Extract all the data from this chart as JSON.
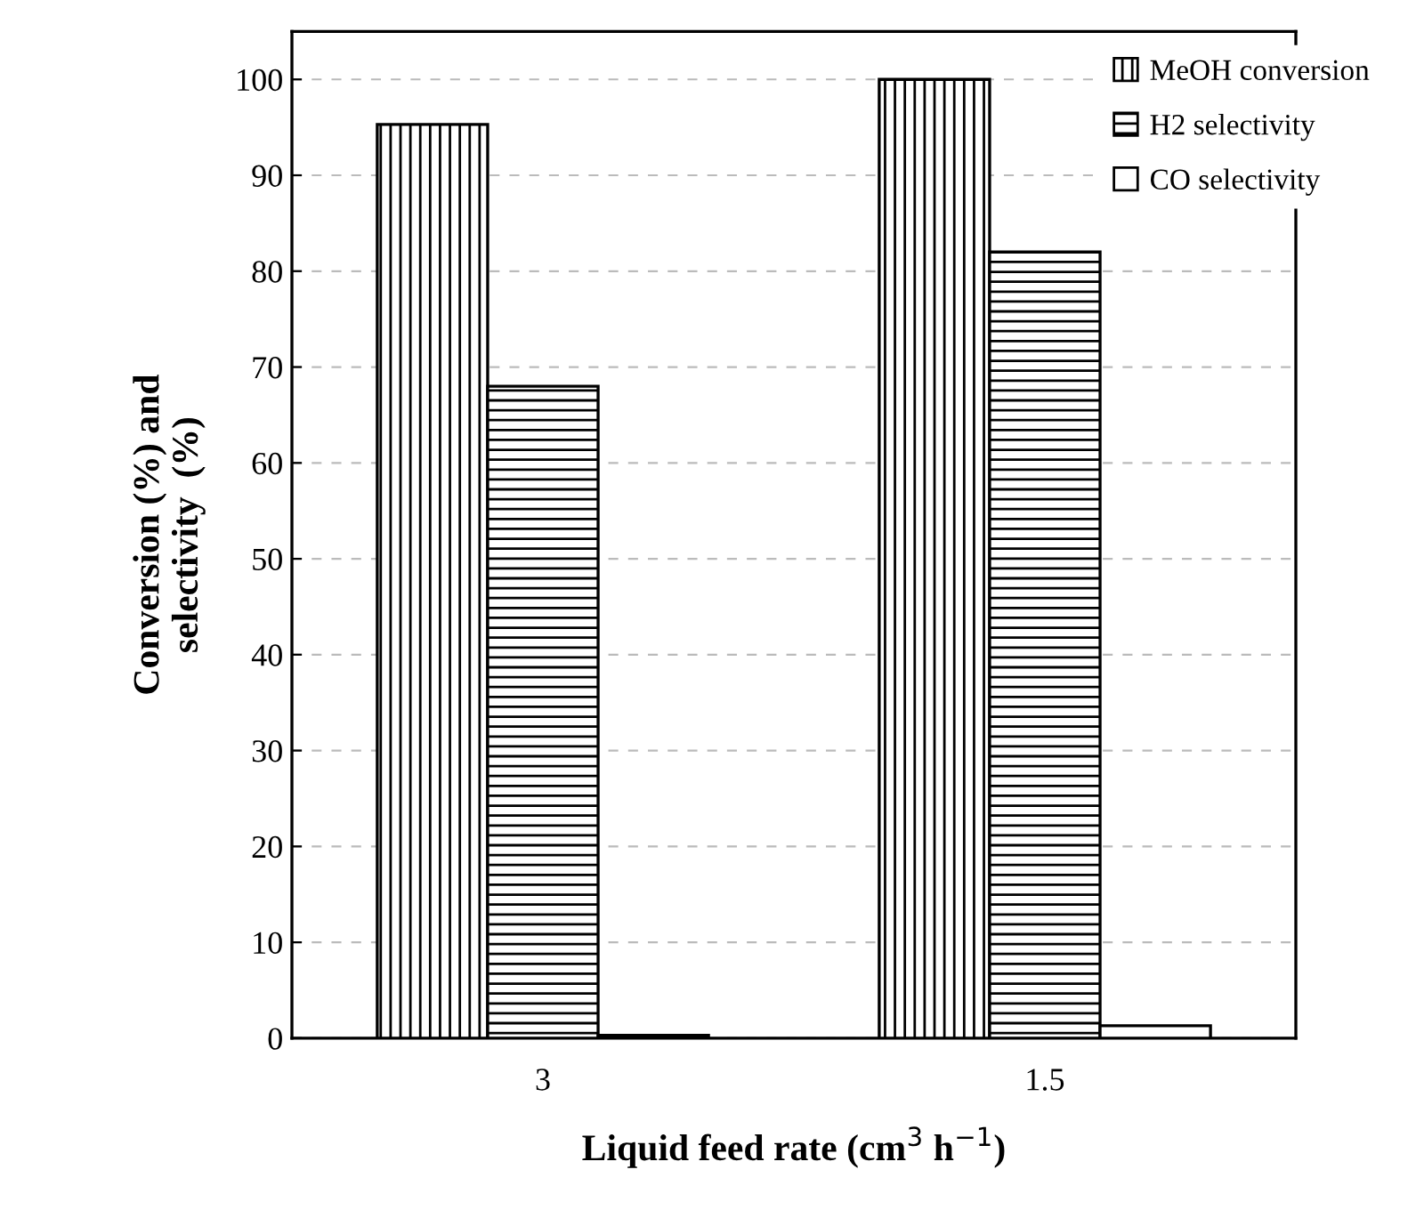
{
  "chart_data": {
    "type": "bar",
    "xlabel": "Liquid feed rate (cm$^{3}$ h$^{−1}$)",
    "ylabel": "Conversion (%) and\nselectivity  (%)",
    "categories": [
      "3",
      "1.5"
    ],
    "series": [
      {
        "name": "MeOH conversion",
        "color": "#000000",
        "values": [
          95.3,
          100
        ]
      },
      {
        "name": "H2 selectivity",
        "color": "#000000",
        "values": [
          68,
          82
        ]
      },
      {
        "name": "CO selectivity",
        "color": "#ffffff",
        "values": [
          0.3,
          1.3
        ]
      }
    ],
    "ylim": [
      0,
      105
    ],
    "yticks": [
      0,
      10,
      20,
      30,
      40,
      50,
      60,
      70,
      80,
      90,
      100
    ],
    "grid": "y",
    "legend": "top right"
  }
}
